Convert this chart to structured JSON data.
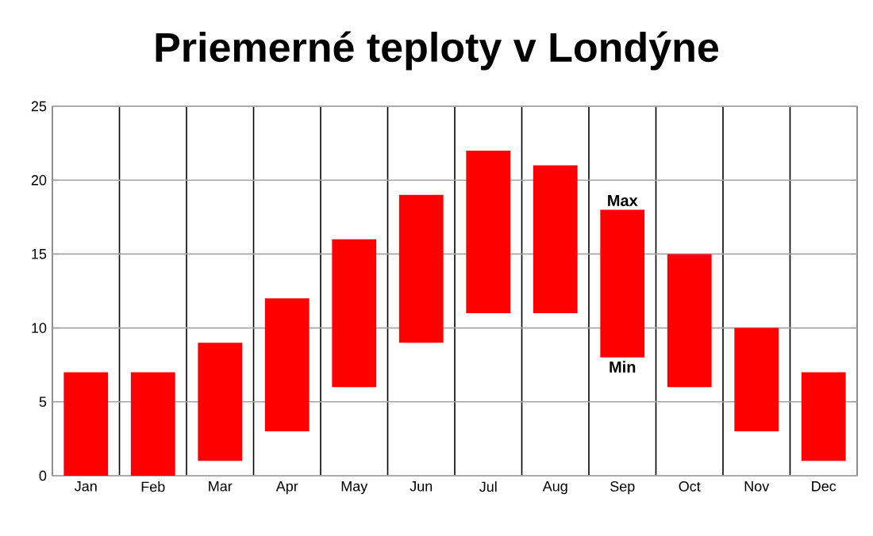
{
  "chart_data": {
    "type": "bar",
    "title": "Priemerné teploty v Londýne",
    "categories": [
      "Jan",
      "Feb",
      "Mar",
      "Apr",
      "May",
      "Jun",
      "Jul",
      "Aug",
      "Sep",
      "Oct",
      "Nov",
      "Dec"
    ],
    "base": [
      0,
      0,
      1,
      3,
      6,
      9,
      11,
      11,
      8,
      6,
      3,
      1
    ],
    "values": [
      7,
      7,
      8,
      9,
      10,
      10,
      11,
      10,
      10,
      9,
      7,
      6
    ],
    "color": "#ff0000",
    "ylim": [
      0,
      25
    ],
    "yticks": [
      0,
      5,
      10,
      15,
      20,
      25
    ],
    "grid": true,
    "annotations": [
      {
        "text": "Max",
        "x": "Sep",
        "y": 18
      },
      {
        "text": "Min",
        "x": "Sep",
        "y": 8
      }
    ]
  }
}
